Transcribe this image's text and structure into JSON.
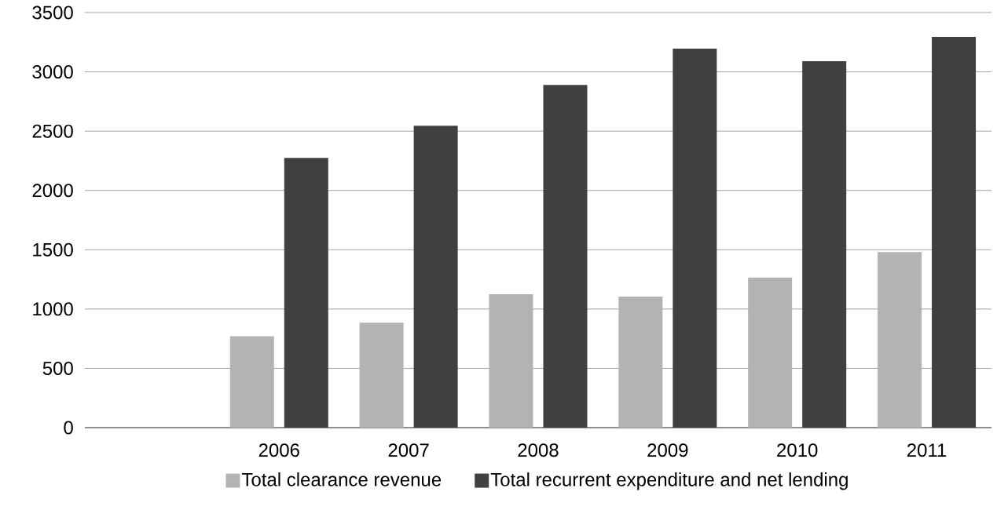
{
  "chart_data": {
    "type": "bar",
    "categories": [
      null,
      "2006",
      "2007",
      "2008",
      "2009",
      "2010",
      "2011"
    ],
    "series": [
      {
        "name": "Total clearance revenue",
        "color": "#b3b3b3",
        "values": [
          null,
          770,
          885,
          1125,
          1105,
          1265,
          1480
        ]
      },
      {
        "name": "Total recurrent expenditure and net lending",
        "color": "#404040",
        "values": [
          null,
          2275,
          2545,
          2890,
          3195,
          3090,
          3295
        ]
      }
    ],
    "ylim": [
      0,
      3500
    ],
    "yticks": [
      0,
      500,
      1000,
      1500,
      2000,
      2500,
      3000,
      3500
    ],
    "grid": "y",
    "legend": "bottom"
  }
}
